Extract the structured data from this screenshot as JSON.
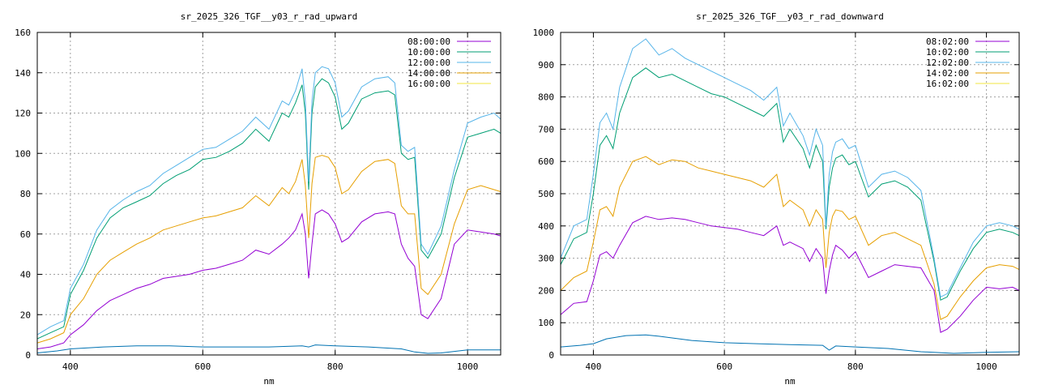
{
  "chart_data": [
    {
      "type": "line",
      "title": "sr_2025_326_TGF__y03_r_rad_upward",
      "xlabel": "nm",
      "ylabel": "",
      "xlim": [
        350,
        1050
      ],
      "ylim": [
        0,
        160
      ],
      "xticks": [
        400,
        600,
        800,
        1000
      ],
      "yticks": [
        0,
        20,
        40,
        60,
        80,
        100,
        120,
        140,
        160
      ],
      "grid": true,
      "legend_position": "top-right",
      "series": [
        {
          "name": "08:00:00",
          "color": "#9400d3",
          "x": [
            350,
            370,
            390,
            400,
            420,
            440,
            460,
            480,
            500,
            520,
            540,
            560,
            580,
            600,
            620,
            640,
            660,
            680,
            700,
            720,
            730,
            740,
            750,
            755,
            760,
            765,
            770,
            780,
            790,
            800,
            810,
            820,
            840,
            860,
            880,
            890,
            900,
            910,
            920,
            930,
            940,
            960,
            980,
            1000,
            1020,
            1040,
            1050
          ],
          "y": [
            3,
            4,
            6,
            10,
            15,
            22,
            27,
            30,
            33,
            35,
            38,
            39,
            40,
            42,
            43,
            45,
            47,
            52,
            50,
            55,
            58,
            62,
            70,
            60,
            38,
            55,
            70,
            72,
            70,
            65,
            56,
            58,
            66,
            70,
            71,
            70,
            55,
            48,
            44,
            20,
            18,
            28,
            55,
            62,
            61,
            60,
            59
          ]
        },
        {
          "name": "10:00:00",
          "color": "#009e73",
          "x": [
            350,
            370,
            390,
            400,
            420,
            440,
            460,
            480,
            500,
            520,
            540,
            560,
            580,
            600,
            620,
            640,
            660,
            680,
            700,
            720,
            730,
            740,
            750,
            755,
            760,
            765,
            770,
            780,
            790,
            800,
            810,
            820,
            840,
            860,
            880,
            890,
            900,
            910,
            920,
            930,
            940,
            960,
            980,
            1000,
            1020,
            1040,
            1050
          ],
          "y": [
            8,
            11,
            14,
            30,
            42,
            58,
            68,
            73,
            76,
            79,
            85,
            89,
            92,
            97,
            98,
            101,
            105,
            112,
            106,
            120,
            118,
            125,
            134,
            120,
            82,
            120,
            133,
            137,
            135,
            128,
            112,
            115,
            127,
            130,
            131,
            129,
            100,
            97,
            98,
            52,
            48,
            60,
            88,
            108,
            110,
            112,
            110
          ]
        },
        {
          "name": "12:00:00",
          "color": "#56b4e9",
          "x": [
            350,
            370,
            390,
            400,
            420,
            440,
            460,
            480,
            500,
            520,
            540,
            560,
            580,
            600,
            620,
            640,
            660,
            680,
            700,
            720,
            730,
            740,
            750,
            755,
            760,
            765,
            770,
            780,
            790,
            800,
            810,
            820,
            840,
            860,
            880,
            890,
            900,
            910,
            920,
            930,
            940,
            960,
            980,
            1000,
            1020,
            1040,
            1050
          ],
          "y": [
            10,
            14,
            17,
            33,
            45,
            62,
            72,
            77,
            81,
            84,
            90,
            94,
            98,
            102,
            103,
            107,
            111,
            118,
            112,
            126,
            124,
            131,
            142,
            126,
            86,
            126,
            140,
            143,
            142,
            135,
            118,
            121,
            133,
            137,
            138,
            135,
            104,
            101,
            103,
            55,
            50,
            64,
            92,
            115,
            118,
            120,
            117
          ]
        },
        {
          "name": "14:00:00",
          "color": "#e69f00",
          "x": [
            350,
            370,
            390,
            400,
            420,
            440,
            460,
            480,
            500,
            520,
            540,
            560,
            580,
            600,
            620,
            640,
            660,
            680,
            700,
            720,
            730,
            740,
            750,
            755,
            760,
            765,
            770,
            780,
            790,
            800,
            810,
            820,
            840,
            860,
            880,
            890,
            900,
            910,
            920,
            930,
            940,
            960,
            980,
            1000,
            1020,
            1040,
            1050
          ],
          "y": [
            6,
            8,
            11,
            20,
            28,
            40,
            47,
            51,
            55,
            58,
            62,
            64,
            66,
            68,
            69,
            71,
            73,
            79,
            74,
            83,
            80,
            86,
            97,
            84,
            58,
            85,
            98,
            99,
            98,
            93,
            80,
            82,
            91,
            96,
            97,
            95,
            74,
            70,
            70,
            33,
            30,
            40,
            65,
            82,
            84,
            82,
            81
          ]
        },
        {
          "name": "16:00:00",
          "color": "#f0e442",
          "x": [
            350,
            700,
            1050
          ],
          "y": [
            0,
            0,
            0
          ]
        },
        {
          "name": "",
          "color": "#0072b2",
          "x": [
            350,
            380,
            400,
            450,
            500,
            550,
            600,
            650,
            700,
            750,
            760,
            770,
            800,
            850,
            900,
            920,
            940,
            960,
            1000,
            1050
          ],
          "y": [
            1,
            2,
            3,
            4,
            4.5,
            4.5,
            4,
            4,
            4,
            4.5,
            4,
            5,
            4.5,
            4,
            3,
            1.5,
            0.8,
            1,
            2.5,
            2.5
          ]
        }
      ]
    },
    {
      "type": "line",
      "title": "sr_2025_326_TGF__y03_r_rad_downward",
      "xlabel": "nm",
      "ylabel": "",
      "xlim": [
        350,
        1050
      ],
      "ylim": [
        0,
        1000
      ],
      "xticks": [
        400,
        600,
        800,
        1000
      ],
      "yticks": [
        0,
        100,
        200,
        300,
        400,
        500,
        600,
        700,
        800,
        900,
        1000
      ],
      "grid": true,
      "legend_position": "top-right",
      "series": [
        {
          "name": "08:02:00",
          "color": "#9400d3",
          "x": [
            350,
            370,
            390,
            400,
            410,
            420,
            430,
            440,
            460,
            480,
            500,
            520,
            540,
            560,
            580,
            600,
            620,
            640,
            660,
            680,
            690,
            700,
            720,
            730,
            740,
            750,
            755,
            760,
            765,
            770,
            780,
            790,
            800,
            820,
            840,
            860,
            880,
            900,
            920,
            930,
            940,
            960,
            980,
            1000,
            1020,
            1040,
            1050
          ],
          "y": [
            125,
            160,
            165,
            230,
            310,
            320,
            300,
            340,
            410,
            430,
            420,
            425,
            420,
            410,
            400,
            395,
            390,
            380,
            370,
            400,
            340,
            350,
            330,
            290,
            330,
            300,
            190,
            260,
            310,
            340,
            325,
            300,
            320,
            240,
            260,
            280,
            275,
            270,
            200,
            70,
            80,
            120,
            170,
            210,
            205,
            210,
            200
          ]
        },
        {
          "name": "10:02:00",
          "color": "#009e73",
          "x": [
            350,
            370,
            390,
            400,
            410,
            420,
            430,
            440,
            460,
            480,
            500,
            520,
            540,
            560,
            580,
            600,
            620,
            640,
            660,
            680,
            690,
            700,
            720,
            730,
            740,
            750,
            755,
            760,
            765,
            770,
            780,
            790,
            800,
            820,
            840,
            860,
            880,
            900,
            920,
            930,
            940,
            960,
            980,
            1000,
            1020,
            1040,
            1050
          ],
          "y": [
            280,
            360,
            380,
            500,
            650,
            680,
            640,
            750,
            860,
            890,
            860,
            870,
            850,
            830,
            810,
            800,
            780,
            760,
            740,
            780,
            660,
            700,
            640,
            580,
            650,
            600,
            390,
            520,
            580,
            610,
            620,
            590,
            600,
            490,
            530,
            540,
            520,
            480,
            290,
            170,
            180,
            260,
            330,
            380,
            390,
            380,
            370
          ]
        },
        {
          "name": "12:02:00",
          "color": "#56b4e9",
          "x": [
            350,
            370,
            390,
            400,
            410,
            420,
            430,
            440,
            460,
            480,
            500,
            520,
            540,
            560,
            580,
            600,
            620,
            640,
            660,
            680,
            690,
            700,
            720,
            730,
            740,
            750,
            755,
            760,
            765,
            770,
            780,
            790,
            800,
            820,
            840,
            860,
            880,
            900,
            920,
            930,
            940,
            960,
            980,
            1000,
            1020,
            1040,
            1050
          ],
          "y": [
            300,
            400,
            420,
            560,
            720,
            750,
            700,
            830,
            950,
            980,
            930,
            950,
            920,
            900,
            880,
            860,
            840,
            820,
            790,
            830,
            710,
            750,
            680,
            620,
            700,
            650,
            400,
            560,
            630,
            660,
            670,
            640,
            650,
            520,
            560,
            570,
            550,
            510,
            300,
            180,
            190,
            270,
            350,
            400,
            410,
            400,
            390
          ]
        },
        {
          "name": "14:02:00",
          "color": "#e69f00",
          "x": [
            350,
            370,
            390,
            400,
            410,
            420,
            430,
            440,
            460,
            480,
            500,
            520,
            540,
            560,
            580,
            600,
            620,
            640,
            660,
            680,
            690,
            700,
            720,
            730,
            740,
            750,
            755,
            760,
            765,
            770,
            780,
            790,
            800,
            820,
            840,
            860,
            880,
            900,
            920,
            930,
            940,
            960,
            980,
            1000,
            1020,
            1040,
            1050
          ],
          "y": [
            200,
            240,
            260,
            350,
            450,
            460,
            430,
            520,
            600,
            615,
            590,
            605,
            600,
            580,
            570,
            560,
            550,
            540,
            520,
            560,
            460,
            480,
            450,
            400,
            450,
            420,
            270,
            380,
            430,
            450,
            445,
            420,
            430,
            340,
            370,
            380,
            360,
            340,
            220,
            110,
            120,
            180,
            230,
            270,
            280,
            275,
            265
          ]
        },
        {
          "name": "16:02:00",
          "color": "#f0e442",
          "x": [
            350,
            700,
            1050
          ],
          "y": [
            0,
            0,
            0
          ]
        },
        {
          "name": "",
          "color": "#0072b2",
          "x": [
            350,
            380,
            400,
            420,
            450,
            480,
            500,
            550,
            600,
            650,
            700,
            750,
            760,
            770,
            800,
            850,
            900,
            950,
            1000,
            1050
          ],
          "y": [
            25,
            30,
            35,
            50,
            60,
            62,
            58,
            45,
            38,
            35,
            32,
            30,
            15,
            28,
            25,
            20,
            10,
            5,
            8,
            10
          ]
        }
      ]
    }
  ]
}
